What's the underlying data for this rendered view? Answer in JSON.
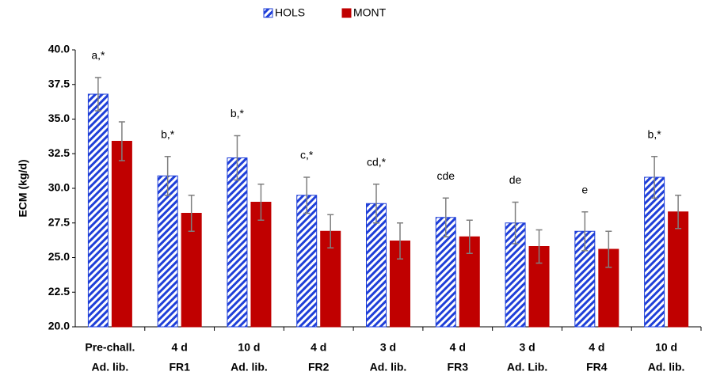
{
  "chart_data": {
    "type": "bar",
    "y_label": "ECM (kg/d)",
    "categories": [
      [
        "Pre-chall.",
        "Ad. lib."
      ],
      [
        "4 d",
        "FR1"
      ],
      [
        "10 d",
        "Ad. lib."
      ],
      [
        "4 d",
        "FR2"
      ],
      [
        "3 d",
        "Ad. lib."
      ],
      [
        "4 d",
        "FR3"
      ],
      [
        "3 d",
        "Ad. Lib."
      ],
      [
        "4 d",
        "FR4"
      ],
      [
        "10 d",
        "Ad. lib."
      ]
    ],
    "annotations": [
      "a,*",
      "b,*",
      "b,*",
      "c,*",
      "cd,*",
      "cde",
      "de",
      "e",
      "b,*"
    ],
    "series": [
      {
        "name": "HOLS",
        "color": "#1f3fd8",
        "hatch": true,
        "values": [
          36.8,
          30.9,
          32.2,
          29.5,
          28.9,
          27.9,
          27.5,
          26.9,
          30.8
        ],
        "errors": [
          1.2,
          1.4,
          1.6,
          1.3,
          1.4,
          1.4,
          1.5,
          1.4,
          1.5
        ]
      },
      {
        "name": "MONT",
        "color": "#c00000",
        "hatch": false,
        "values": [
          33.4,
          28.2,
          29.0,
          26.9,
          26.2,
          26.5,
          25.8,
          25.6,
          28.3
        ],
        "errors": [
          1.4,
          1.3,
          1.3,
          1.2,
          1.3,
          1.2,
          1.2,
          1.3,
          1.2
        ]
      }
    ],
    "ylim": [
      20,
      40
    ],
    "yticks": [
      {
        "value": 20,
        "label": "20.0"
      },
      {
        "value": 22.5,
        "label": "22.5"
      },
      {
        "value": 25,
        "label": "25.0"
      },
      {
        "value": 27.5,
        "label": "27.5"
      },
      {
        "value": 30,
        "label": "30.0"
      },
      {
        "value": 32.5,
        "label": "32.5"
      },
      {
        "value": 35,
        "label": "35.0"
      },
      {
        "value": 37.5,
        "label": "37.5"
      },
      {
        "value": 40,
        "label": "40.0"
      }
    ],
    "grid": false,
    "legend": "top"
  }
}
